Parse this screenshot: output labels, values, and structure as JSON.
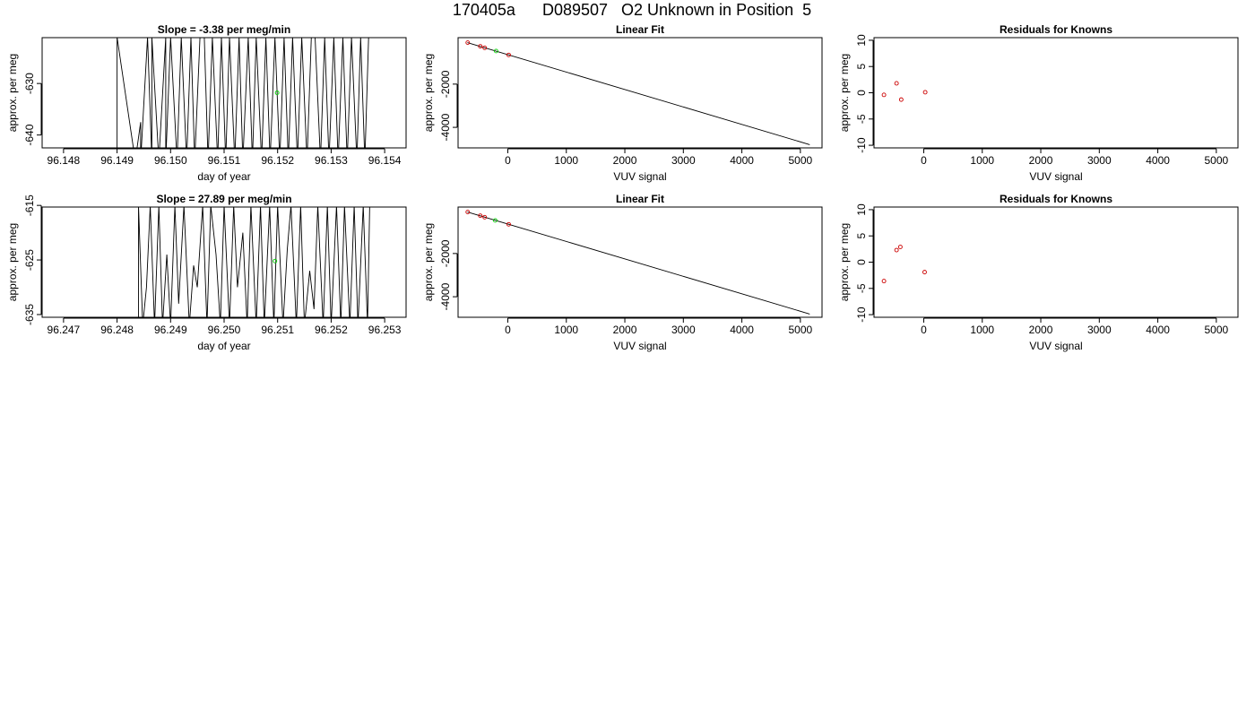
{
  "page_title": "170405a      D089507   O2 Unknown in Position  5",
  "colors": {
    "line": "#000000",
    "known_point": "#cc0000",
    "unknown_point": "#00cc00",
    "background": "#ffffff"
  },
  "chart_data": [
    {
      "id": "slope1",
      "type": "line",
      "title": "Slope =  -3.38  per meg/min",
      "xlabel": "day of year",
      "ylabel": "approx. per meg",
      "xlim": [
        96.1476,
        96.1544
      ],
      "ylim": [
        -642.5,
        -621.1
      ],
      "xticks": [
        96.148,
        96.149,
        96.15,
        96.151,
        96.152,
        96.153,
        96.154
      ],
      "xtick_labels": [
        "96.148",
        "96.149",
        "96.150",
        "96.151",
        "96.152",
        "96.153",
        "96.154"
      ],
      "yticks": [
        -640,
        -630
      ],
      "ytick_labels": [
        "-640",
        "-630"
      ],
      "series": [
        {
          "x": [
            96.149,
            96.149,
            96.14934,
            96.14944,
            96.14944,
            96.14957,
            96.14965,
            96.14965,
            96.14978,
            96.14991,
            96.14991,
            96.15,
            96.15012,
            96.1502,
            96.1503,
            96.15038,
            96.15045,
            96.15055,
            96.15063,
            96.1507,
            96.15078,
            96.15088,
            96.15095,
            96.15103,
            96.1511,
            96.1512,
            96.15128,
            96.15135,
            96.15145,
            96.15153,
            96.1516,
            96.1517,
            96.15178,
            96.15186,
            96.15195,
            96.15204,
            96.15212,
            96.1522,
            96.15228,
            96.15237,
            96.15245,
            96.15255,
            96.15263,
            96.1527,
            96.1528,
            96.15288,
            96.15296,
            96.15305,
            96.15313,
            96.15322,
            96.1533,
            96.15338,
            96.15348,
            96.15355,
            96.15363,
            96.1537
          ],
          "y": [
            -645,
            -621,
            -645,
            -637.5,
            -645,
            -621,
            -645,
            -621,
            -645,
            -621,
            -645,
            -621,
            -645,
            -621,
            -645,
            -621,
            -645,
            -621,
            -621,
            -645,
            -621,
            -645,
            -621,
            -645,
            -621,
            -645,
            -621,
            -645,
            -621,
            -645,
            -621,
            -645,
            -621,
            -645,
            -621,
            -645,
            -621,
            -645,
            -621,
            -645,
            -621,
            -645,
            -621,
            -621,
            -645,
            -621,
            -645,
            -621,
            -645,
            -621,
            -645,
            -621,
            -645,
            -621,
            -645,
            -621
          ]
        }
      ],
      "markers": [
        {
          "x": 96.15199,
          "y": -631.8,
          "color": "#00cc00",
          "kind": "unknown"
        }
      ]
    },
    {
      "id": "fit1",
      "type": "scatter",
      "title": "Linear Fit",
      "xlabel": "VUV signal",
      "ylabel": "approx. per meg",
      "xlim": [
        -850,
        5370
      ],
      "ylim": [
        -4950,
        150
      ],
      "xticks": [
        0,
        1000,
        2000,
        3000,
        4000,
        5000
      ],
      "xtick_labels": [
        "0",
        "1000",
        "2000",
        "3000",
        "4000",
        "5000"
      ],
      "yticks": [
        -4000,
        -2000
      ],
      "ytick_labels": [
        "-4000",
        "-2000"
      ],
      "fit_line": {
        "x1": -690,
        "y1": -80,
        "x2": 5160,
        "y2": -4800
      },
      "points": [
        {
          "x": -685,
          "y": -80,
          "kind": "known"
        },
        {
          "x": -470,
          "y": -250,
          "kind": "known"
        },
        {
          "x": -395,
          "y": -320,
          "kind": "known"
        },
        {
          "x": -200,
          "y": -470,
          "kind": "unknown"
        },
        {
          "x": 15,
          "y": -650,
          "kind": "known"
        }
      ]
    },
    {
      "id": "resid1",
      "type": "scatter",
      "title": "Residuals for Knowns",
      "xlabel": "VUV signal",
      "ylabel": "approx. per meg",
      "xlim": [
        -850,
        5370
      ],
      "ylim": [
        -10.5,
        10.5
      ],
      "xticks": [
        0,
        1000,
        2000,
        3000,
        4000,
        5000
      ],
      "xtick_labels": [
        "0",
        "1000",
        "2000",
        "3000",
        "4000",
        "5000"
      ],
      "yticks": [
        -10,
        -5,
        0,
        5,
        10
      ],
      "ytick_labels": [
        "-10",
        "-5",
        "0",
        "5",
        "10"
      ],
      "points": [
        {
          "x": -680,
          "y": -0.4,
          "kind": "known"
        },
        {
          "x": -465,
          "y": 1.8,
          "kind": "known"
        },
        {
          "x": -385,
          "y": -1.3,
          "kind": "known"
        },
        {
          "x": 25,
          "y": 0.1,
          "kind": "known"
        }
      ]
    },
    {
      "id": "slope2",
      "type": "line",
      "title": "Slope =  27.89  per meg/min",
      "xlabel": "day of year",
      "ylabel": "approx. per meg",
      "xlim": [
        96.2466,
        96.2534
      ],
      "ylim": [
        -635.5,
        -615.3
      ],
      "xticks": [
        96.247,
        96.248,
        96.249,
        96.25,
        96.251,
        96.252,
        96.253
      ],
      "xtick_labels": [
        "96.247",
        "96.248",
        "96.249",
        "96.250",
        "96.251",
        "96.252",
        "96.253"
      ],
      "yticks": [
        -635,
        -625,
        -615
      ],
      "ytick_labels": [
        "-635",
        "-625",
        "-615"
      ],
      "series": [
        {
          "x": [
            96.2466,
            96.2484,
            96.2484,
            96.24848,
            96.24855,
            96.24862,
            96.2487,
            96.24878,
            96.24885,
            96.24893,
            96.249,
            96.24908,
            96.24915,
            96.24925,
            96.24935,
            96.24943,
            96.2495,
            96.2496,
            96.24968,
            96.24975,
            96.24985,
            96.24993,
            96.25,
            96.2501,
            96.25018,
            96.25025,
            96.25035,
            96.25043,
            96.2505,
            96.2506,
            96.25068,
            96.25075,
            96.25085,
            96.25093,
            96.251,
            96.2511,
            96.25118,
            96.25125,
            96.25135,
            96.25143,
            96.2515,
            96.2516,
            96.25168,
            96.25175,
            96.25185,
            96.25193,
            96.252,
            96.2521,
            96.25218,
            96.25225,
            96.25235,
            96.25243,
            96.2525,
            96.2526,
            96.25268,
            96.25272
          ],
          "y": [
            -636,
            -636,
            -615,
            -637,
            -630,
            -615,
            -637,
            -615,
            -637,
            -624,
            -637,
            -615,
            -633,
            -615,
            -637,
            -626,
            -630,
            -615,
            -637,
            -615,
            -624,
            -637,
            -615,
            -637,
            -615,
            -630,
            -620,
            -637,
            -615,
            -637,
            -615,
            -637,
            -615,
            -637,
            -615,
            -637,
            -623,
            -615,
            -637,
            -615,
            -637,
            -627,
            -634,
            -615,
            -637,
            -615,
            -637,
            -615,
            -637,
            -615,
            -637,
            -615,
            -637,
            -615,
            -637,
            -615
          ]
        }
      ],
      "markers": [
        {
          "x": 96.25095,
          "y": -625.2,
          "color": "#00cc00",
          "kind": "unknown"
        }
      ]
    },
    {
      "id": "fit2",
      "type": "scatter",
      "title": "Linear Fit",
      "xlabel": "VUV signal",
      "ylabel": "approx. per meg",
      "xlim": [
        -850,
        5370
      ],
      "ylim": [
        -4950,
        150
      ],
      "xticks": [
        0,
        1000,
        2000,
        3000,
        4000,
        5000
      ],
      "xtick_labels": [
        "0",
        "1000",
        "2000",
        "3000",
        "4000",
        "5000"
      ],
      "yticks": [
        -4000,
        -2000
      ],
      "ytick_labels": [
        "-4000",
        "-2000"
      ],
      "fit_line": {
        "x1": -690,
        "y1": -80,
        "x2": 5160,
        "y2": -4800
      },
      "points": [
        {
          "x": -685,
          "y": -80,
          "kind": "known"
        },
        {
          "x": -470,
          "y": -250,
          "kind": "known"
        },
        {
          "x": -395,
          "y": -320,
          "kind": "known"
        },
        {
          "x": -215,
          "y": -470,
          "kind": "unknown"
        },
        {
          "x": 15,
          "y": -650,
          "kind": "known"
        }
      ]
    },
    {
      "id": "resid2",
      "type": "scatter",
      "title": "Residuals for Knowns",
      "xlabel": "VUV signal",
      "ylabel": "approx. per meg",
      "xlim": [
        -850,
        5370
      ],
      "ylim": [
        -10.5,
        10.5
      ],
      "xticks": [
        0,
        1000,
        2000,
        3000,
        4000,
        5000
      ],
      "xtick_labels": [
        "0",
        "1000",
        "2000",
        "3000",
        "4000",
        "5000"
      ],
      "yticks": [
        -10,
        -5,
        0,
        5,
        10
      ],
      "ytick_labels": [
        "-10",
        "-5",
        "0",
        "5",
        "10"
      ],
      "points": [
        {
          "x": -680,
          "y": -3.6,
          "kind": "known"
        },
        {
          "x": -465,
          "y": 2.3,
          "kind": "known"
        },
        {
          "x": -400,
          "y": 2.9,
          "kind": "known"
        },
        {
          "x": 15,
          "y": -1.9,
          "kind": "known"
        }
      ]
    }
  ]
}
